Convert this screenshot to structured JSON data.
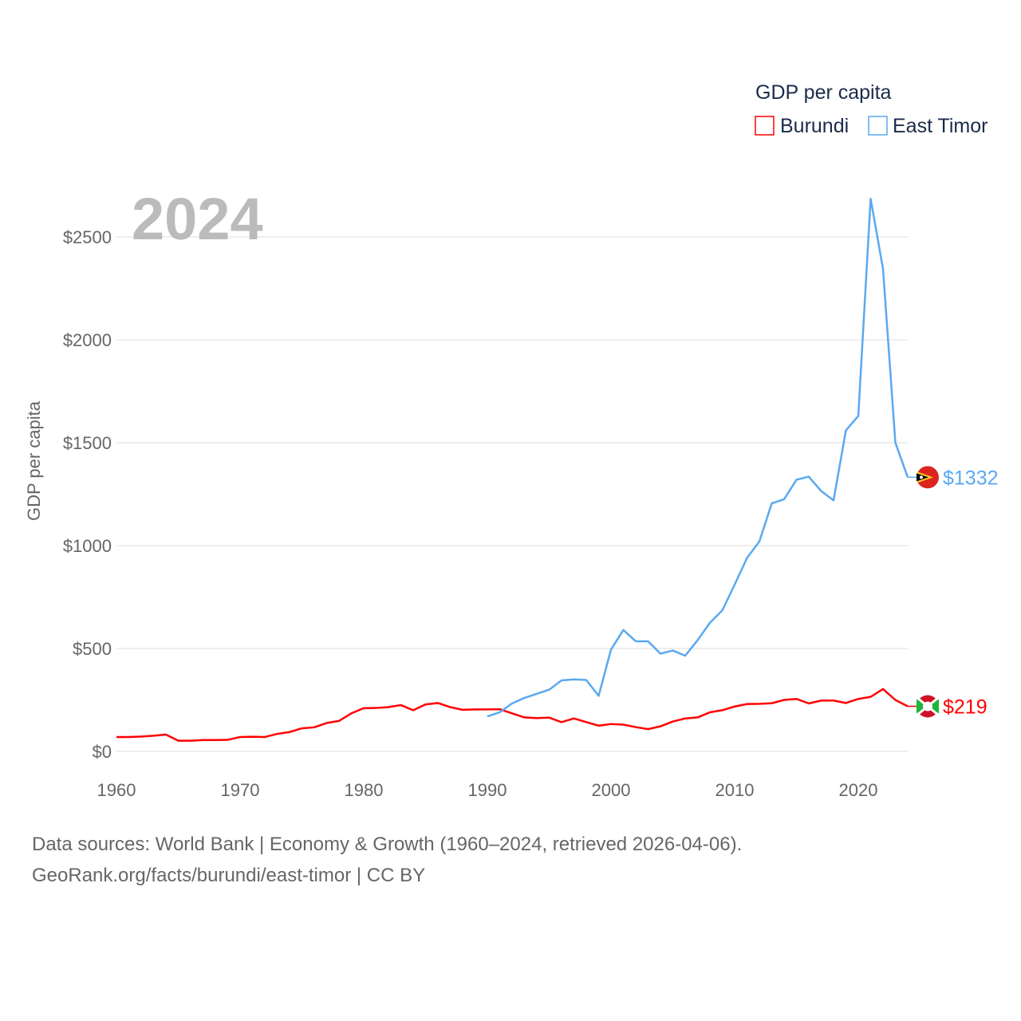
{
  "chart_data": {
    "type": "line",
    "year_label": "2024",
    "ylabel": "GDP per capita",
    "legend_title": "GDP per capita",
    "legend_position": "top-right",
    "xlim": [
      1960,
      2024
    ],
    "ylim": [
      0,
      2700
    ],
    "x_ticks": [
      1960,
      1970,
      1980,
      1990,
      2000,
      2010,
      2020
    ],
    "x_tick_labels": [
      "1960",
      "1970",
      "1980",
      "1990",
      "2000",
      "2010",
      "2020"
    ],
    "y_ticks": [
      0,
      500,
      1000,
      1500,
      2000,
      2500
    ],
    "y_tick_labels": [
      "$0",
      "$500",
      "$1000",
      "$1500",
      "$2000",
      "$2500"
    ],
    "grid": true,
    "series": [
      {
        "name": "Burundi",
        "color": "#ff0000",
        "start_year": 1960,
        "end_label": "$219",
        "values": [
          70,
          70,
          72,
          76,
          82,
          52,
          52,
          55,
          55,
          56,
          70,
          71,
          70,
          85,
          94,
          112,
          117,
          138,
          148,
          185,
          210,
          211,
          215,
          225,
          200,
          228,
          235,
          215,
          202,
          204,
          204,
          205,
          185,
          165,
          162,
          164,
          142,
          160,
          142,
          125,
          133,
          130,
          118,
          108,
          122,
          145,
          160,
          165,
          190,
          200,
          218,
          230,
          231,
          234,
          250,
          255,
          233,
          247,
          247,
          235,
          255,
          265,
          303,
          250,
          219
        ]
      },
      {
        "name": "East Timor",
        "color": "#5aa9f0",
        "start_year": 1990,
        "end_label": "$1332",
        "values": [
          170,
          190,
          233,
          260,
          280,
          300,
          345,
          350,
          347,
          270,
          495,
          590,
          535,
          535,
          475,
          490,
          465,
          540,
          625,
          685,
          810,
          940,
          1020,
          1205,
          1225,
          1320,
          1335,
          1265,
          1220,
          1560,
          1630,
          2685,
          2345,
          1500,
          1332
        ]
      }
    ]
  },
  "footer": {
    "line1": "Data sources: World Bank | Economy & Growth (1960–2024, retrieved 2026-04-06).",
    "line2": "GeoRank.org/facts/burundi/east-timor | CC BY"
  }
}
